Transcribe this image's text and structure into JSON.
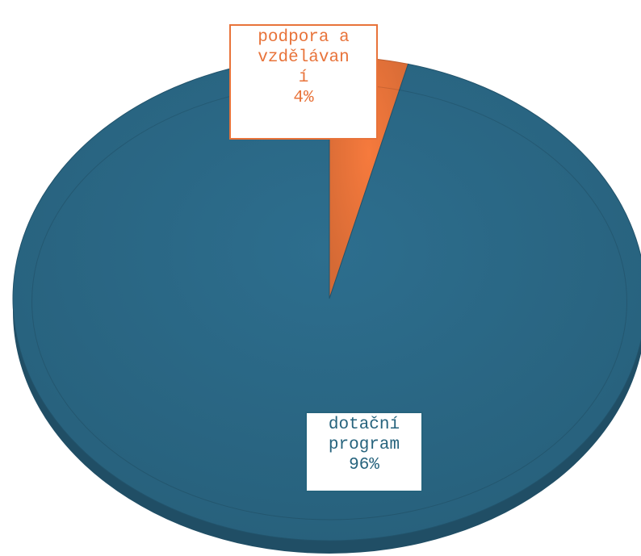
{
  "chart_data": {
    "type": "pie",
    "style": "3d",
    "slices": [
      {
        "label_lines": [
          "podpora a",
          "vzdělávan",
          "í"
        ],
        "value": 4,
        "value_label": "4%",
        "color": "#e8733a"
      },
      {
        "label_lines": [
          "dotační",
          "program"
        ],
        "value": 96,
        "value_label": "96%",
        "color": "#2a6886"
      }
    ],
    "legend": "none",
    "title": ""
  }
}
